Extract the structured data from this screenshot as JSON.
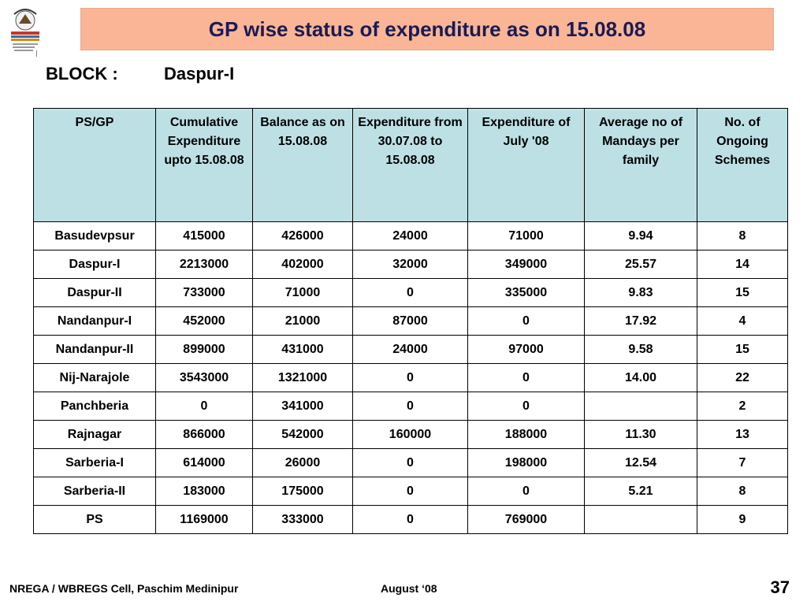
{
  "title": "GP wise status of expenditure as on 15.08.08",
  "block": {
    "label": "BLOCK :",
    "value": "Daspur-I"
  },
  "table": {
    "headers": [
      "PS/GP",
      "Cumulative Expenditure upto 15.08.08",
      "Balance as on 15.08.08",
      "Expenditure from 30.07.08 to 15.08.08",
      "Expenditure of July '08",
      "Average no of Mandays per family",
      "No. of Ongoing Schemes"
    ],
    "rows": [
      [
        "Basudevpsur",
        "415000",
        "426000",
        "24000",
        "71000",
        "9.94",
        "8"
      ],
      [
        "Daspur-I",
        "2213000",
        "402000",
        "32000",
        "349000",
        "25.57",
        "14"
      ],
      [
        "Daspur-II",
        "733000",
        "71000",
        "0",
        "335000",
        "9.83",
        "15"
      ],
      [
        "Nandanpur-I",
        "452000",
        "21000",
        "87000",
        "0",
        "17.92",
        "4"
      ],
      [
        "Nandanpur-II",
        "899000",
        "431000",
        "24000",
        "97000",
        "9.58",
        "15"
      ],
      [
        "Nij-Narajole",
        "3543000",
        "1321000",
        "0",
        "0",
        "14.00",
        "22"
      ],
      [
        "Panchberia",
        "0",
        "341000",
        "0",
        "0",
        "",
        "2"
      ],
      [
        "Rajnagar",
        "866000",
        "542000",
        "160000",
        "188000",
        "11.30",
        "13"
      ],
      [
        "Sarberia-I",
        "614000",
        "26000",
        "0",
        "198000",
        "12.54",
        "7"
      ],
      [
        "Sarberia-II",
        "183000",
        "175000",
        "0",
        "0",
        "5.21",
        "8"
      ],
      [
        "PS",
        "1169000",
        "333000",
        "0",
        "769000",
        "",
        "9"
      ]
    ]
  },
  "footer": {
    "org": "NREGA / WBREGS Cell, Paschim Medinipur",
    "date": "August ‘08",
    "page": "37"
  },
  "colors": {
    "title_bg": "#f9b595",
    "title_text": "#1a1a55",
    "header_bg": "#bde0e5"
  },
  "icons": {
    "logo": "nrega-logo-icon"
  }
}
